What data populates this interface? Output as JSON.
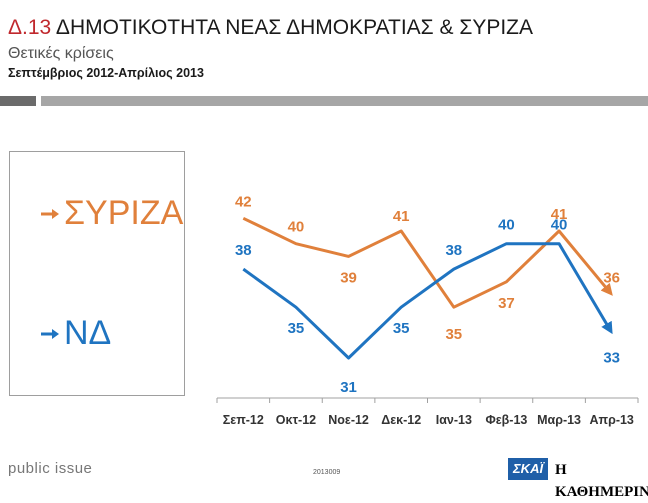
{
  "header": {
    "code": "Δ.13",
    "title": "ΔΗΜΟΤΙΚΟΤΗΤΑ ΝΕΑΣ ΔΗΜΟΚΡΑΤΙΑΣ & ΣΥΡΙΖΑ",
    "subtitle": "Θετικές κρίσεις",
    "period": "Σεπτέμβριος 2012-Απρίλιος 2013"
  },
  "legend": {
    "items": [
      {
        "label": "ΣΥΡΙΖΑ",
        "color": "#e0803b"
      },
      {
        "label": "ΝΔ",
        "color": "#1f74c1"
      }
    ]
  },
  "chart_data": {
    "type": "line",
    "categories": [
      "Σεπ-12",
      "Οκτ-12",
      "Νοε-12",
      "Δεκ-12",
      "Ιαν-13",
      "Φεβ-13",
      "Μαρ-13",
      "Απρ-13"
    ],
    "series": [
      {
        "name": "ΣΥΡΙΖΑ",
        "color": "#e0803b",
        "values": [
          42,
          40,
          39,
          41,
          35,
          37,
          41,
          36
        ]
      },
      {
        "name": "ΝΔ",
        "color": "#1f74c1",
        "values": [
          38,
          35,
          31,
          35,
          38,
          40,
          40,
          33
        ]
      }
    ],
    "title": "ΔΗΜΟΤΙΚΟΤΗΤΑ ΝΕΑΣ ΔΗΜΟΚΡΑΤΙΑΣ & ΣΥΡΙΖΑ",
    "xlabel": "",
    "ylabel": "",
    "ylim": [
      28,
      45
    ],
    "grid": false
  },
  "footer": {
    "source": "public issue",
    "code": "2013009",
    "logo_left": "ΣΚΑΪ",
    "logo_right": "Η ΚΑΘΗΜΕΡΙΝΗ"
  }
}
